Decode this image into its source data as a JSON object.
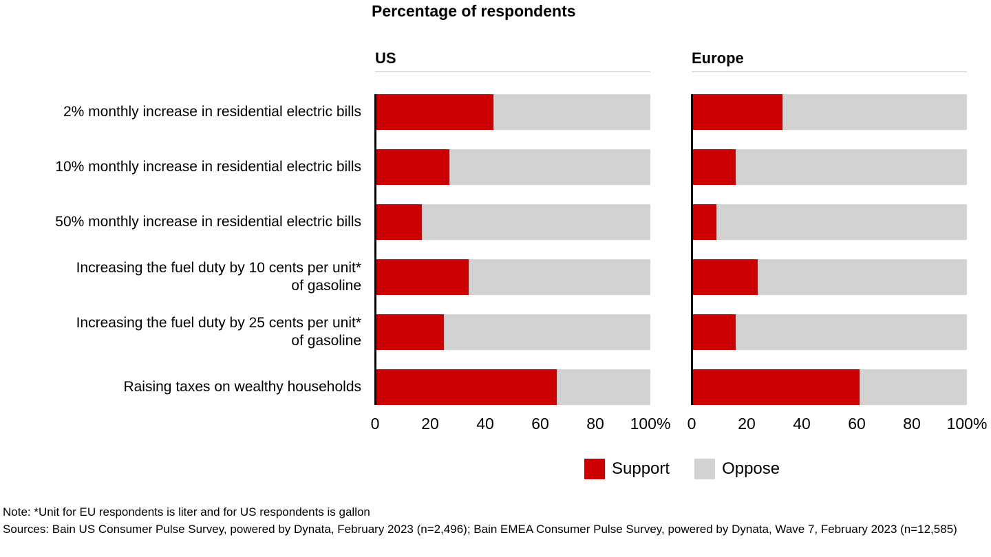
{
  "title": "Percentage of respondents",
  "colors": {
    "support": "#cc0000",
    "oppose": "#d2d2d2",
    "axis": "#000000"
  },
  "legend": {
    "support": "Support",
    "oppose": "Oppose"
  },
  "note": "Note: *Unit for EU respondents is liter and for US respondents is gallon",
  "sources": "Sources: Bain US Consumer Pulse Survey, powered by Dynata, February 2023 (n=2,496); Bain EMEA Consumer Pulse Survey, powered by Dynata, Wave 7, February 2023 (n=12,585)",
  "chart_data": {
    "type": "bar",
    "orientation": "horizontal",
    "stacked": true,
    "unit": "%",
    "title": "Percentage of respondents",
    "categories": [
      "2% monthly increase in residential electric bills",
      "10% monthly increase in residential electric bills",
      "50% monthly increase in residential electric bills",
      "Increasing the fuel duty by 10 cents per unit*\nof gasoline",
      "Increasing the fuel duty by 25 cents per unit*\nof gasoline",
      "Raising taxes on wealthy households"
    ],
    "panels": [
      {
        "name": "US",
        "series": [
          {
            "name": "Support",
            "values": [
              43,
              27,
              17,
              34,
              25,
              66
            ]
          },
          {
            "name": "Oppose",
            "values": [
              57,
              73,
              83,
              66,
              75,
              34
            ]
          }
        ]
      },
      {
        "name": "Europe",
        "series": [
          {
            "name": "Support",
            "values": [
              33,
              16,
              9,
              24,
              16,
              61
            ]
          },
          {
            "name": "Oppose",
            "values": [
              67,
              84,
              91,
              76,
              84,
              39
            ]
          }
        ]
      }
    ],
    "xticks": [
      "0",
      "20",
      "40",
      "60",
      "80",
      "100%"
    ],
    "xlim": [
      0,
      100
    ],
    "legend_entries": [
      "Support",
      "Oppose"
    ],
    "legend_position": "bottom",
    "grid": false
  }
}
